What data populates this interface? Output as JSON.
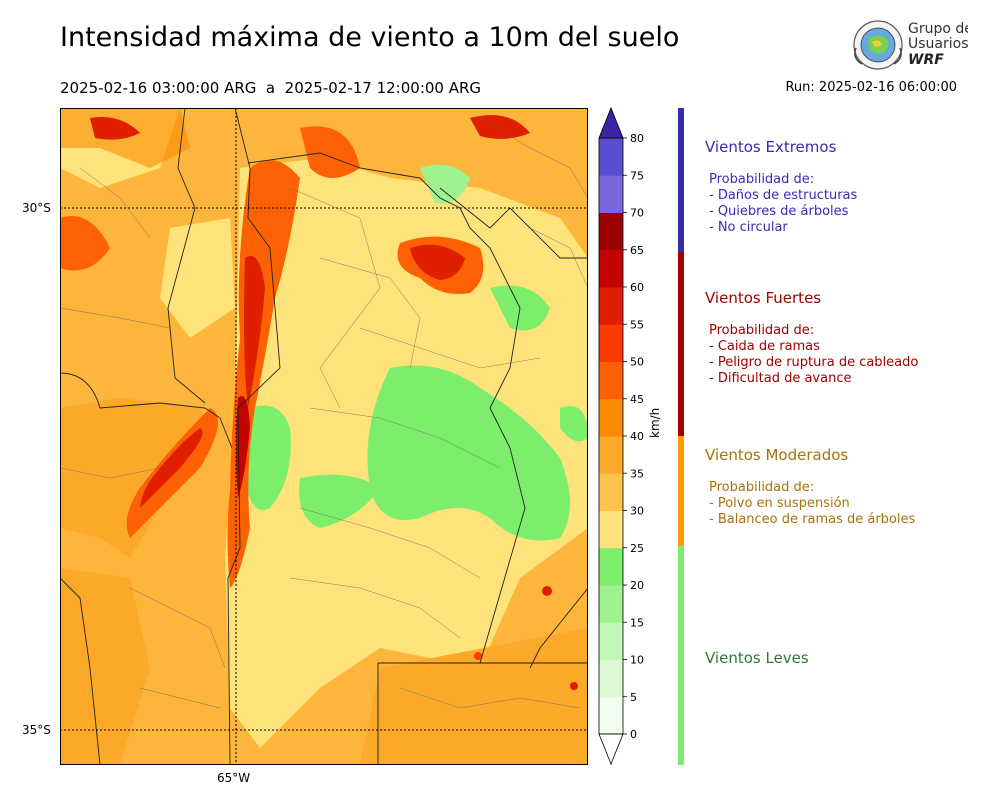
{
  "header": {
    "title": "Intensidad máxima de viento a 10m del suelo",
    "subtitle": "2025-02-16 03:00:00 ARG  a  2025-02-17 12:00:00 ARG",
    "run": "Run: 2025-02-16 06:00:00"
  },
  "logo": {
    "line1": "Grupo de",
    "line2": "Usuarios",
    "line3": "WRF"
  },
  "map": {
    "lat_labels": [
      "30°S",
      "35°S"
    ],
    "lon_labels": [
      "65°W"
    ]
  },
  "colorbar": {
    "unit": "km/h",
    "ticks": [
      "0",
      "5",
      "10",
      "15",
      "20",
      "25",
      "30",
      "35",
      "40",
      "45",
      "50",
      "55",
      "60",
      "65",
      "70",
      "75",
      "80"
    ],
    "colors": [
      "#f2fdf0",
      "#dcfad6",
      "#c0f6b6",
      "#a0f190",
      "#7ded6c",
      "#fde37a",
      "#fcc24a",
      "#fca829",
      "#fc8a00",
      "#fc6204",
      "#fc3a00",
      "#e01e00",
      "#c40400",
      "#9a0000",
      "#7b68dc",
      "#5c4ed0",
      "#4a36c0"
    ],
    "over_color": "#3a24a8",
    "under_color": "#ffffff"
  },
  "categories": [
    {
      "title": "Vientos Extremos",
      "color": "#3a2ab0",
      "lines": [
        "Probabilidad de:",
        "- Daños de estructuras",
        "- Quiebres de árboles",
        "- No circular"
      ]
    },
    {
      "title": "Vientos Fuertes",
      "color": "#a00000",
      "lines": [
        "Probabilidad de:",
        "- Caida de ramas",
        "- Peligro de ruptura de cableado",
        "- Dificultad de avance"
      ]
    },
    {
      "title": "Vientos Moderados",
      "color": "#a8720a",
      "lines": [
        "Probabilidad de:",
        "- Polvo en suspensión",
        "- Balanceo de ramas de árboles"
      ]
    },
    {
      "title": "Vientos Leves",
      "color": "#2e7a2e",
      "lines": []
    }
  ],
  "category_bar_colors": [
    "#3a2ab0",
    "#a00000",
    "#fc9a00",
    "#7ded6c"
  ]
}
